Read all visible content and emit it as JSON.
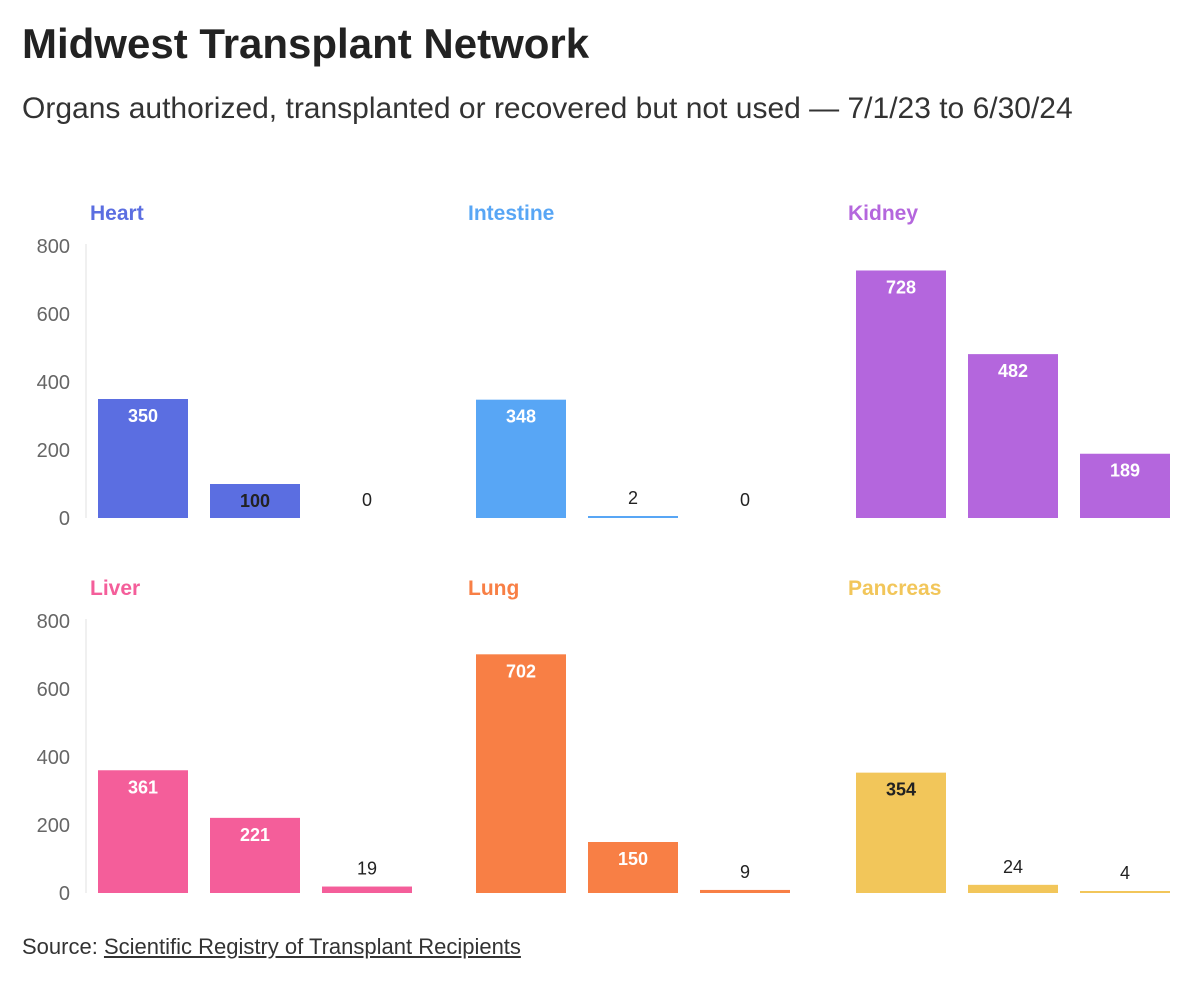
{
  "header": {
    "title": "Midwest Transplant Network",
    "subtitle": "Organs authorized, transplanted or recovered but not used — 7/1/23 to 6/30/24"
  },
  "source": {
    "label": "Source:",
    "link_text": "Scientific Registry of Transplant Recipients"
  },
  "chart_data": [
    {
      "type": "bar",
      "title": "Heart",
      "color": "#5b6ee1",
      "values": [
        350,
        100,
        0
      ],
      "label_colors": [
        "#ffffff",
        "#222222",
        "#222222"
      ],
      "ylim": [
        0,
        800
      ],
      "yticks": [
        "0",
        "200",
        "400",
        "600",
        "800"
      ]
    },
    {
      "type": "bar",
      "title": "Intestine",
      "color": "#58a6f5",
      "values": [
        348,
        2,
        0
      ],
      "label_colors": [
        "#ffffff",
        "#222222",
        "#222222"
      ],
      "ylim": [
        0,
        800
      ],
      "yticks": []
    },
    {
      "type": "bar",
      "title": "Kidney",
      "color": "#b466dd",
      "values": [
        728,
        482,
        189
      ],
      "label_colors": [
        "#ffffff",
        "#ffffff",
        "#ffffff"
      ],
      "ylim": [
        0,
        800
      ],
      "yticks": []
    },
    {
      "type": "bar",
      "title": "Liver",
      "color": "#f45e9a",
      "values": [
        361,
        221,
        19
      ],
      "label_colors": [
        "#ffffff",
        "#ffffff",
        "#222222"
      ],
      "ylim": [
        0,
        800
      ],
      "yticks": [
        "0",
        "200",
        "400",
        "600",
        "800"
      ]
    },
    {
      "type": "bar",
      "title": "Lung",
      "color": "#f87f45",
      "values": [
        702,
        150,
        9
      ],
      "label_colors": [
        "#ffffff",
        "#ffffff",
        "#222222"
      ],
      "ylim": [
        0,
        800
      ],
      "yticks": []
    },
    {
      "type": "bar",
      "title": "Pancreas",
      "color": "#f2c65a",
      "values": [
        354,
        24,
        4
      ],
      "label_colors": [
        "#222222",
        "#222222",
        "#222222"
      ],
      "ylim": [
        0,
        800
      ],
      "yticks": []
    }
  ]
}
